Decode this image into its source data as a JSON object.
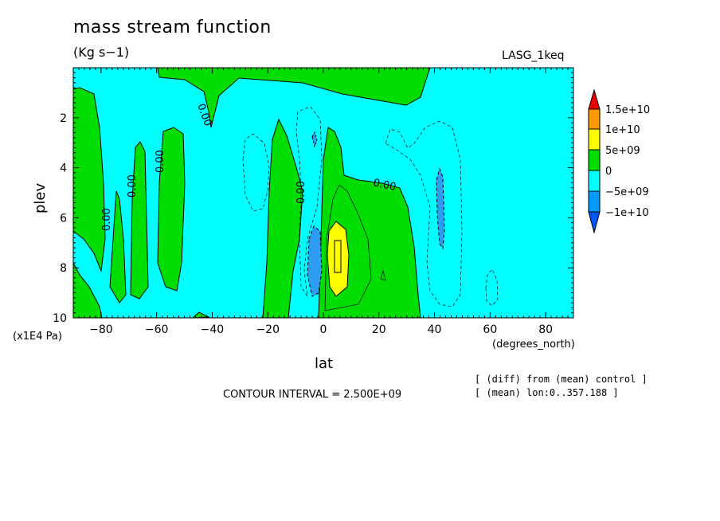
{
  "chart_data": {
    "type": "heatmap",
    "title": "mass stream function",
    "units": "(Kg s−1)",
    "experiment": "LASG_1keq",
    "xlabel": "lat",
    "ylabel": "plev",
    "x_unit": "(degrees_north)",
    "y_unit": "(x1E4 Pa)",
    "xlim": [
      -90,
      90
    ],
    "ylim": [
      10,
      0
    ],
    "x_ticks": [
      "−80",
      "−60",
      "−40",
      "−20",
      "0",
      "20",
      "40",
      "60",
      "80"
    ],
    "y_ticks": [
      "2",
      "4",
      "6",
      "8",
      "10"
    ],
    "contour_interval": "CONTOUR INTERVAL = 2.500E+09",
    "contour_label": "0.00",
    "notes": [
      "[ (diff) from (mean) control ]",
      "[ (mean) lon:0..357.188 ]"
    ],
    "colorbar": {
      "labels": [
        "1.5e+10",
        "1e+10",
        "5e+09",
        "0",
        "−5e+09",
        "−1e+10"
      ],
      "colors": [
        "#ee0000",
        "#ff9900",
        "#ffff00",
        "#00dd00",
        "#00ffff",
        "#0099ff",
        "#0055ff"
      ]
    },
    "colors": {
      "positive": "#00dd00",
      "background": "#00ffff",
      "strong_positive": "#ffff00",
      "strong_negative": "#2e9cf0"
    }
  }
}
